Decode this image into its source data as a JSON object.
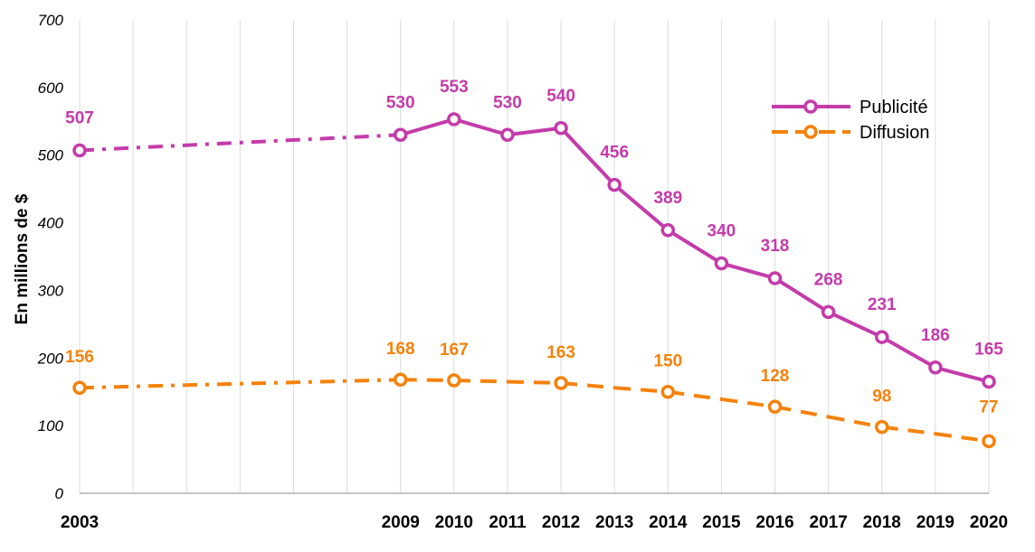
{
  "chart_data": {
    "type": "line",
    "ylabel": "En millions de $",
    "xlabel": "",
    "ylim": [
      0,
      700
    ],
    "yticks": [
      "0",
      "100",
      "200",
      "300",
      "400",
      "500",
      "600",
      "700"
    ],
    "x_slots": [
      "2003",
      "2004",
      "2005",
      "2006",
      "2007",
      "2008",
      "2009",
      "2010",
      "2011",
      "2012",
      "2013",
      "2014",
      "2015",
      "2016",
      "2017",
      "2018",
      "2019",
      "2020"
    ],
    "x_tick_labels": [
      "2003",
      "2009",
      "2010",
      "2011",
      "2012",
      "2013",
      "2014",
      "2015",
      "2016",
      "2017",
      "2018",
      "2019",
      "2020"
    ],
    "grid": "vertical",
    "legend_position": "top-right",
    "series": [
      {
        "name": "Publicité",
        "color": "#C43BAA",
        "x": [
          "2003",
          "2009",
          "2010",
          "2011",
          "2012",
          "2013",
          "2014",
          "2015",
          "2016",
          "2017",
          "2018",
          "2019",
          "2020"
        ],
        "values": [
          507,
          530,
          553,
          530,
          540,
          456,
          389,
          340,
          318,
          268,
          231,
          186,
          165
        ],
        "labels": [
          "507",
          "530",
          "553",
          "530",
          "540",
          "456",
          "389",
          "340",
          "318",
          "268",
          "231",
          "186",
          "165"
        ],
        "markers": [
          true,
          true,
          true,
          true,
          true,
          true,
          true,
          true,
          true,
          true,
          true,
          true,
          true
        ]
      },
      {
        "name": "Diffusion",
        "color": "#F5820A",
        "x": [
          "2003",
          "2009",
          "2010",
          "2011",
          "2012",
          "2013",
          "2014",
          "2015",
          "2016",
          "2017",
          "2018",
          "2019",
          "2020"
        ],
        "values": [
          156,
          168,
          167,
          165,
          163,
          156,
          150,
          139,
          128,
          113,
          98,
          88,
          77
        ],
        "labels": [
          "156",
          "168",
          "167",
          "",
          "163",
          "",
          "150",
          "",
          "128",
          "",
          "98",
          "",
          "77"
        ],
        "markers": [
          true,
          true,
          true,
          false,
          true,
          false,
          true,
          false,
          true,
          false,
          true,
          false,
          true
        ]
      }
    ]
  }
}
